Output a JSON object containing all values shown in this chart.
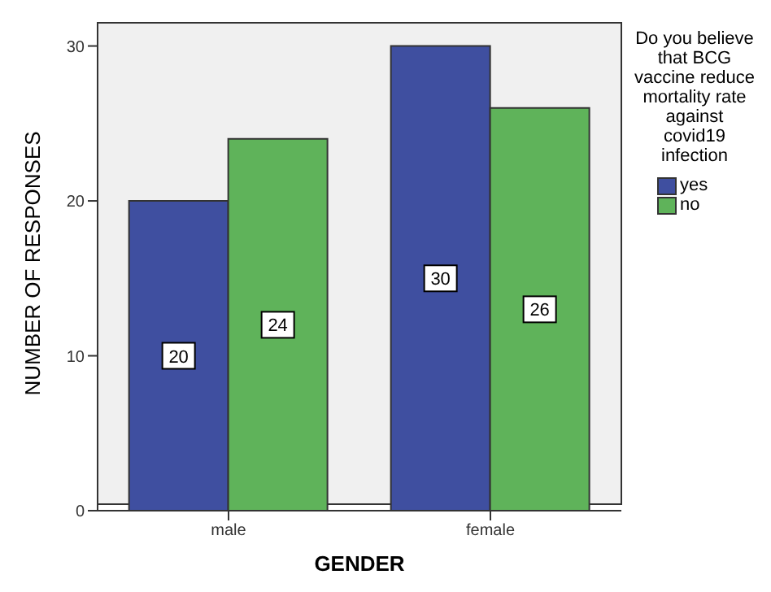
{
  "chart_data": {
    "type": "bar",
    "xlabel": "GENDER",
    "ylabel": "NUMBER OF RESPONSES",
    "legend_title": "Do you believe that BCG vaccine reduce mortality rate against covid19 infection",
    "categories": [
      "male",
      "female"
    ],
    "series": [
      {
        "name": "yes",
        "color": "#3f4fa0",
        "values": [
          20,
          30
        ]
      },
      {
        "name": "no",
        "color": "#5fb35a",
        "values": [
          24,
          26
        ]
      }
    ],
    "ylim": [
      0,
      31.5
    ],
    "yticks": [
      0,
      10,
      20,
      30
    ],
    "data_labels": true,
    "legend": "right",
    "grid": false
  }
}
